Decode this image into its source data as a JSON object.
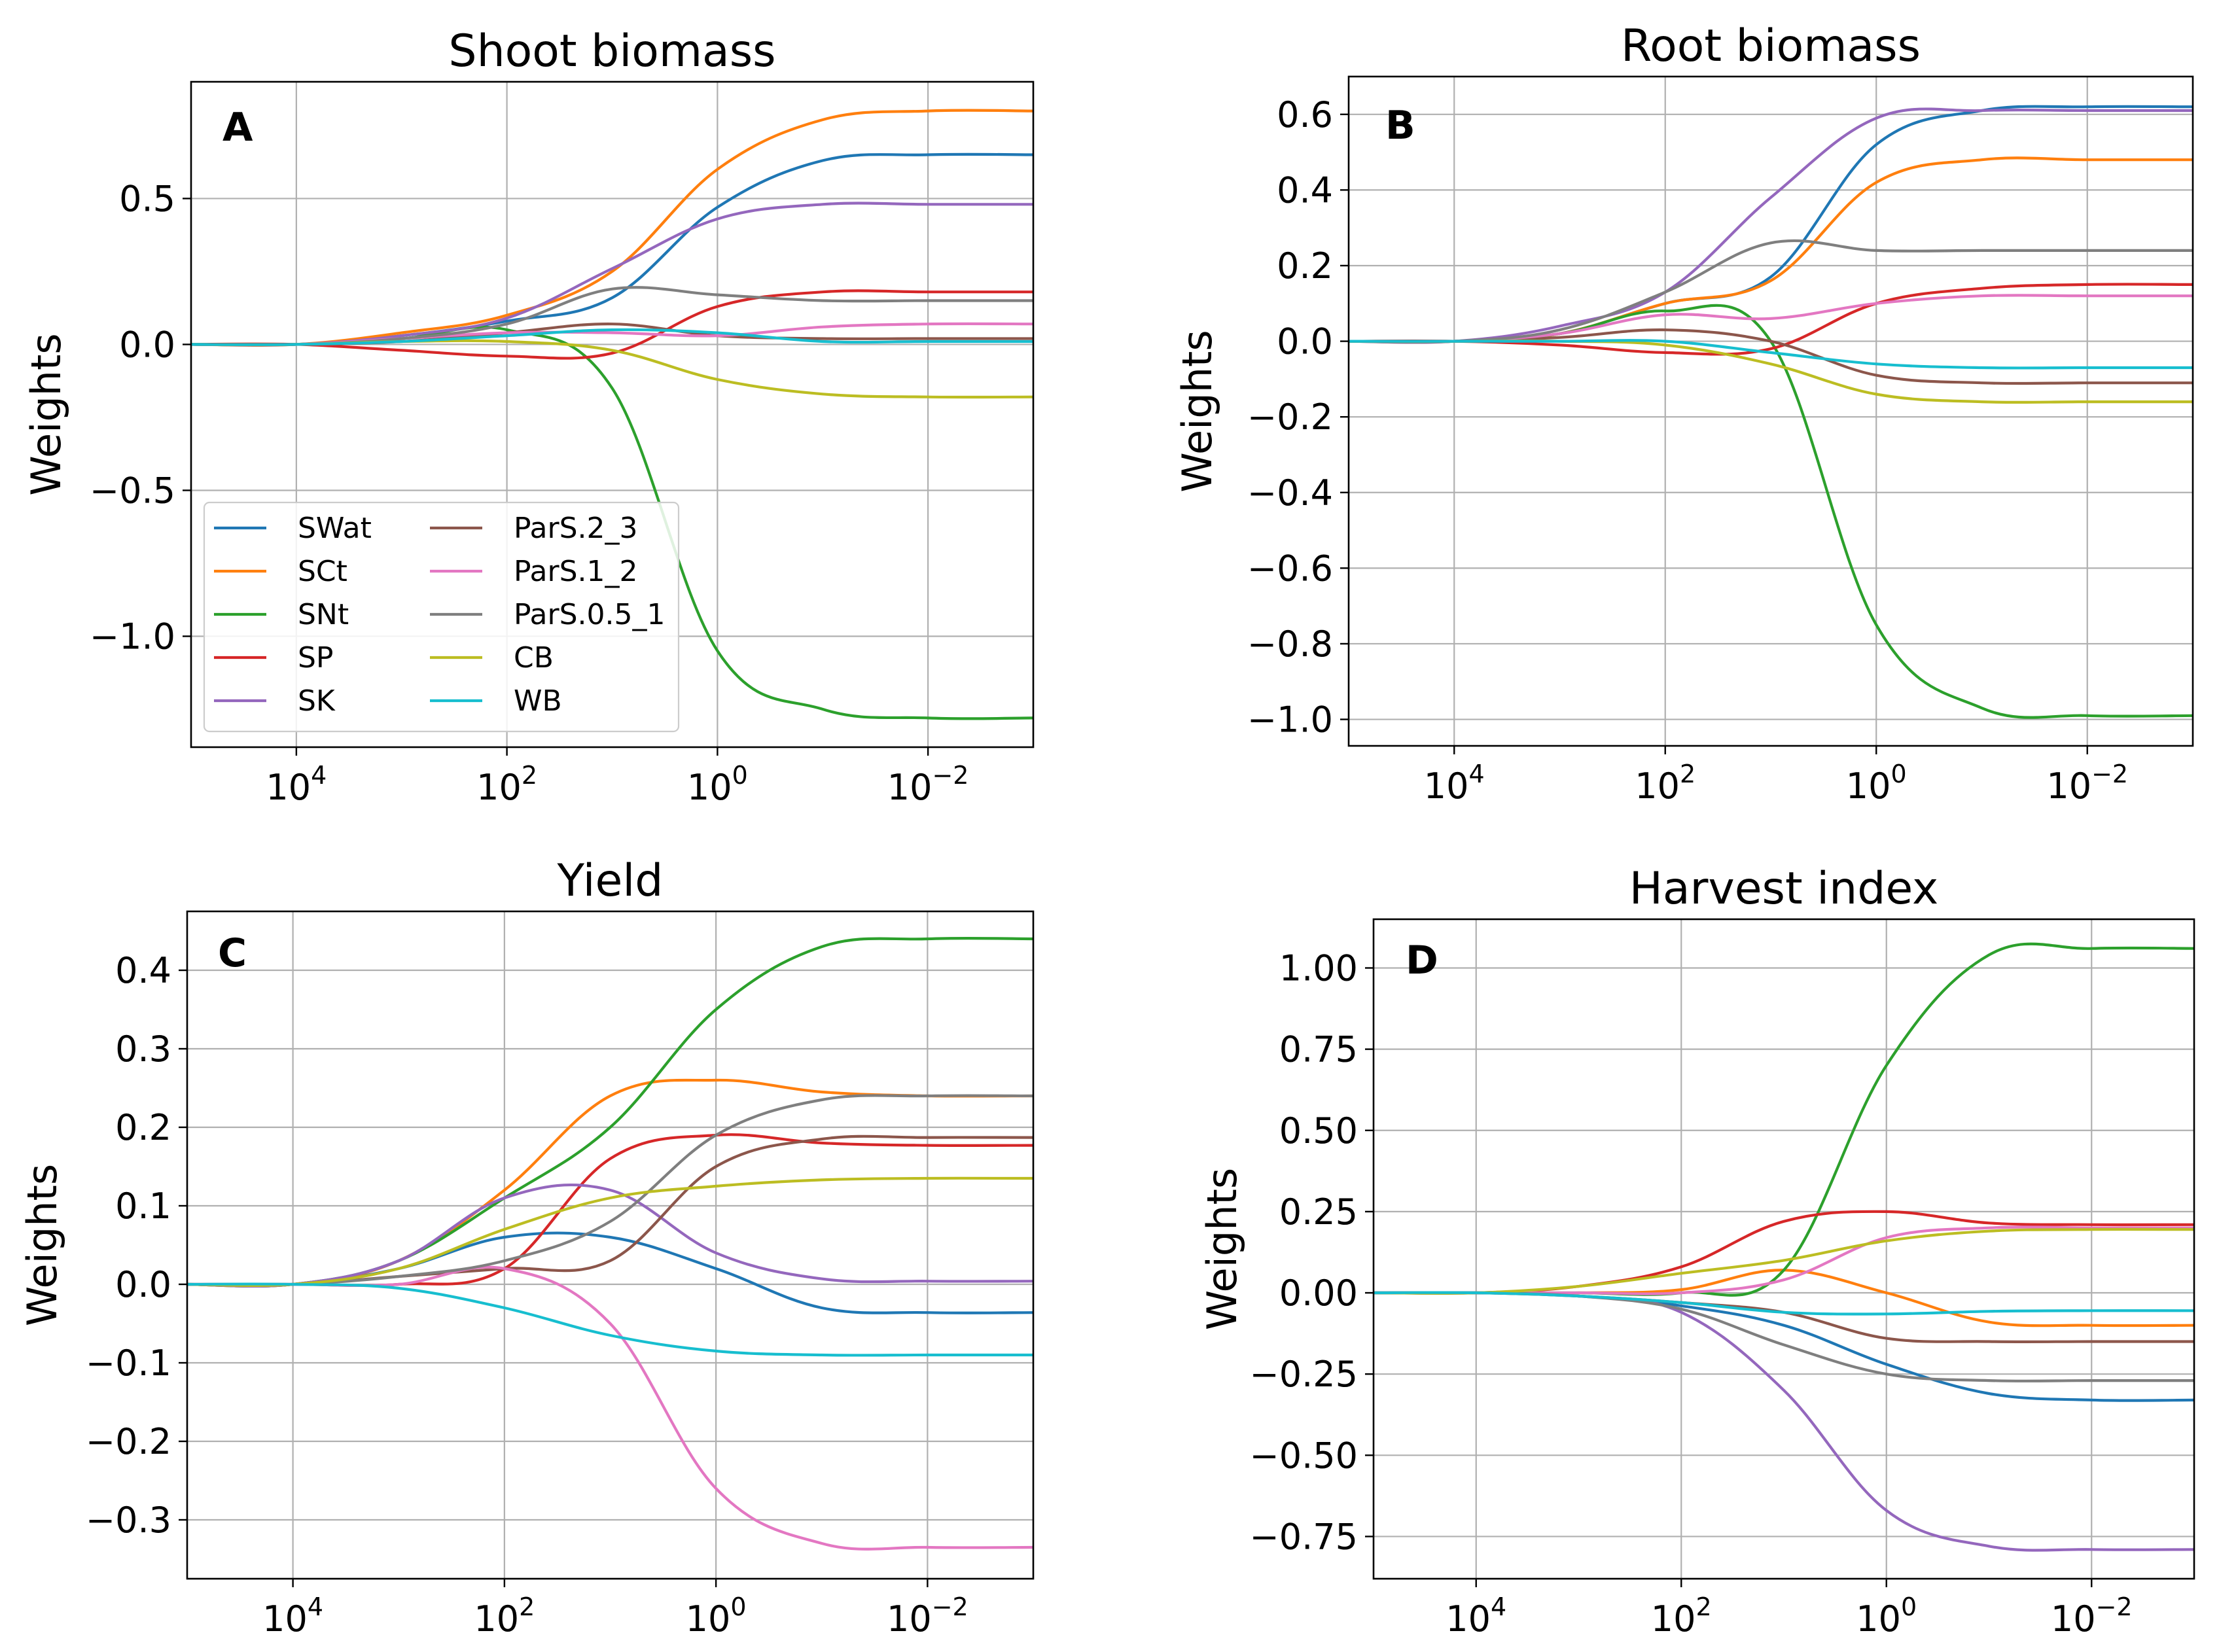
{
  "figure": {
    "legend": [
      {
        "name": "SWat",
        "color": "#1f77b4"
      },
      {
        "name": "SCt",
        "color": "#ff7f0e"
      },
      {
        "name": "SNt",
        "color": "#2ca02c"
      },
      {
        "name": "SP",
        "color": "#d62728"
      },
      {
        "name": "SK",
        "color": "#9467bd"
      },
      {
        "name": "ParS.2_3",
        "color": "#8c564b"
      },
      {
        "name": "ParS.1_2",
        "color": "#e377c2"
      },
      {
        "name": "ParS.0.5_1",
        "color": "#7f7f7f"
      },
      {
        "name": "CB",
        "color": "#bcbd22"
      },
      {
        "name": "WB",
        "color": "#17becf"
      }
    ]
  },
  "chart_data": [
    {
      "type": "line",
      "panel": "A",
      "title": "Shoot biomass",
      "xlabel": "",
      "ylabel": "Weights",
      "xscale": "log",
      "x_direction": "decreasing",
      "xlim": [
        100000,
        0.001
      ],
      "xticks": [
        10000,
        100,
        1,
        0.01
      ],
      "xticklabels": [
        "10^4",
        "10^2",
        "10^0",
        "10^-2"
      ],
      "ylim": [
        -1.38,
        0.9
      ],
      "yticks": [
        0.5,
        0.0,
        -0.5,
        -1.0
      ],
      "yticklabels": [
        "0.5",
        "0.0",
        "−0.5",
        "−1.0"
      ],
      "grid": true,
      "legend_position": "lower-left",
      "x": [
        100000,
        10000,
        1000,
        100,
        10,
        1,
        0.1,
        0.01,
        0.001
      ],
      "series": [
        {
          "name": "SWat",
          "values": [
            0,
            0.0,
            0.03,
            0.08,
            0.16,
            0.47,
            0.63,
            0.65,
            0.65
          ]
        },
        {
          "name": "SCt",
          "values": [
            0,
            0.0,
            0.04,
            0.1,
            0.25,
            0.6,
            0.77,
            0.8,
            0.8
          ]
        },
        {
          "name": "SNt",
          "values": [
            0,
            0.0,
            0.02,
            0.05,
            -0.15,
            -1.05,
            -1.25,
            -1.28,
            -1.28
          ]
        },
        {
          "name": "SP",
          "values": [
            0,
            0.0,
            -0.02,
            -0.04,
            -0.03,
            0.13,
            0.18,
            0.18,
            0.18
          ]
        },
        {
          "name": "SK",
          "values": [
            0,
            0.0,
            0.03,
            0.09,
            0.26,
            0.43,
            0.48,
            0.48,
            0.48
          ]
        },
        {
          "name": "ParS.2_3",
          "values": [
            0,
            0.0,
            0.01,
            0.04,
            0.07,
            0.03,
            0.02,
            0.02,
            0.02
          ]
        },
        {
          "name": "ParS.1_2",
          "values": [
            0,
            0.0,
            0.02,
            0.04,
            0.04,
            0.03,
            0.06,
            0.07,
            0.07
          ]
        },
        {
          "name": "ParS.0.5_1",
          "values": [
            0,
            0.0,
            0.02,
            0.07,
            0.19,
            0.17,
            0.15,
            0.15,
            0.15
          ]
        },
        {
          "name": "CB",
          "values": [
            0,
            0.0,
            0.01,
            0.01,
            -0.02,
            -0.12,
            -0.17,
            -0.18,
            -0.18
          ]
        },
        {
          "name": "WB",
          "values": [
            0,
            0.0,
            0.01,
            0.03,
            0.05,
            0.04,
            0.01,
            0.01,
            0.01
          ]
        }
      ]
    },
    {
      "type": "line",
      "panel": "B",
      "title": "Root biomass",
      "xlabel": "",
      "ylabel": "Weights",
      "xscale": "log",
      "x_direction": "decreasing",
      "xlim": [
        100000,
        0.001
      ],
      "xticks": [
        10000,
        100,
        1,
        0.01
      ],
      "xticklabels": [
        "10^4",
        "10^2",
        "10^0",
        "10^-2"
      ],
      "ylim": [
        -1.07,
        0.7
      ],
      "yticks": [
        0.6,
        0.4,
        0.2,
        0.0,
        -0.2,
        -0.4,
        -0.6,
        -0.8,
        -1.0
      ],
      "yticklabels": [
        "0.6",
        "0.4",
        "0.2",
        "0.0",
        "−0.2",
        "−0.4",
        "−0.6",
        "−0.8",
        "−1.0"
      ],
      "grid": true,
      "x": [
        100000,
        10000,
        1000,
        100,
        10,
        1,
        0.1,
        0.01,
        0.001
      ],
      "series": [
        {
          "name": "SWat",
          "values": [
            0,
            0.0,
            0.02,
            0.1,
            0.17,
            0.52,
            0.61,
            0.62,
            0.62
          ]
        },
        {
          "name": "SCt",
          "values": [
            0,
            0.0,
            0.02,
            0.1,
            0.16,
            0.42,
            0.48,
            0.48,
            0.48
          ]
        },
        {
          "name": "SNt",
          "values": [
            0,
            0.0,
            0.02,
            0.08,
            0.0,
            -0.75,
            -0.97,
            -0.99,
            -0.99
          ]
        },
        {
          "name": "SP",
          "values": [
            0,
            0.0,
            -0.01,
            -0.03,
            -0.02,
            0.1,
            0.14,
            0.15,
            0.15
          ]
        },
        {
          "name": "SK",
          "values": [
            0,
            0.0,
            0.04,
            0.13,
            0.38,
            0.59,
            0.61,
            0.61,
            0.61
          ]
        },
        {
          "name": "ParS.2_3",
          "values": [
            0,
            0.0,
            0.01,
            0.03,
            0.0,
            -0.09,
            -0.11,
            -0.11,
            -0.11
          ]
        },
        {
          "name": "ParS.1_2",
          "values": [
            0,
            0.0,
            0.02,
            0.07,
            0.06,
            0.1,
            0.12,
            0.12,
            0.12
          ]
        },
        {
          "name": "ParS.0.5_1",
          "values": [
            0,
            0.0,
            0.03,
            0.13,
            0.26,
            0.24,
            0.24,
            0.24,
            0.24
          ]
        },
        {
          "name": "CB",
          "values": [
            0,
            0.0,
            0.0,
            -0.01,
            -0.06,
            -0.14,
            -0.16,
            -0.16,
            -0.16
          ]
        },
        {
          "name": "WB",
          "values": [
            0,
            0.0,
            0.0,
            0.0,
            -0.03,
            -0.06,
            -0.07,
            -0.07,
            -0.07
          ]
        }
      ]
    },
    {
      "type": "line",
      "panel": "C",
      "title": "Yield",
      "xlabel": "",
      "ylabel": "Weights",
      "xscale": "log",
      "x_direction": "decreasing",
      "xlim": [
        100000,
        0.001
      ],
      "xticks": [
        10000,
        100,
        1,
        0.01
      ],
      "xticklabels": [
        "10^4",
        "10^2",
        "10^0",
        "10^-2"
      ],
      "ylim": [
        -0.375,
        0.475
      ],
      "yticks": [
        0.4,
        0.3,
        0.2,
        0.1,
        0.0,
        -0.1,
        -0.2,
        -0.3
      ],
      "yticklabels": [
        "0.4",
        "0.3",
        "0.2",
        "0.1",
        "0.0",
        "−0.1",
        "−0.2",
        "−0.3"
      ],
      "grid": true,
      "x": [
        100000,
        10000,
        1000,
        100,
        10,
        1,
        0.1,
        0.01,
        0.001
      ],
      "series": [
        {
          "name": "SWat",
          "values": [
            0,
            0.0,
            0.02,
            0.06,
            0.06,
            0.02,
            -0.03,
            -0.036,
            -0.036
          ]
        },
        {
          "name": "SCt",
          "values": [
            0,
            0.0,
            0.03,
            0.12,
            0.24,
            0.26,
            0.245,
            0.24,
            0.24
          ]
        },
        {
          "name": "SNt",
          "values": [
            0,
            0.0,
            0.03,
            0.11,
            0.2,
            0.35,
            0.43,
            0.44,
            0.44
          ]
        },
        {
          "name": "SP",
          "values": [
            0,
            0.0,
            0.0,
            0.02,
            0.16,
            0.19,
            0.18,
            0.177,
            0.177
          ]
        },
        {
          "name": "SK",
          "values": [
            0,
            0.0,
            0.03,
            0.11,
            0.12,
            0.04,
            0.007,
            0.004,
            0.004
          ]
        },
        {
          "name": "ParS.2_3",
          "values": [
            0,
            0.0,
            0.01,
            0.02,
            0.03,
            0.15,
            0.185,
            0.187,
            0.187
          ]
        },
        {
          "name": "ParS.1_2",
          "values": [
            0,
            0.0,
            0.0,
            0.02,
            -0.05,
            -0.26,
            -0.33,
            -0.335,
            -0.335
          ]
        },
        {
          "name": "ParS.0.5_1",
          "values": [
            0,
            0.0,
            0.01,
            0.03,
            0.08,
            0.19,
            0.235,
            0.24,
            0.24
          ]
        },
        {
          "name": "CB",
          "values": [
            0,
            0.0,
            0.02,
            0.07,
            0.11,
            0.125,
            0.133,
            0.135,
            0.135
          ]
        },
        {
          "name": "WB",
          "values": [
            0,
            0.0,
            -0.005,
            -0.03,
            -0.065,
            -0.085,
            -0.09,
            -0.09,
            -0.09
          ]
        }
      ]
    },
    {
      "type": "line",
      "panel": "D",
      "title": "Harvest index",
      "xlabel": "",
      "ylabel": "Weights",
      "xscale": "log",
      "x_direction": "decreasing",
      "xlim": [
        100000,
        0.001
      ],
      "xticks": [
        10000,
        100,
        1,
        0.01
      ],
      "xticklabels": [
        "10^4",
        "10^2",
        "10^0",
        "10^-2"
      ],
      "ylim": [
        -0.88,
        1.15
      ],
      "yticks": [
        1.0,
        0.75,
        0.5,
        0.25,
        0.0,
        -0.25,
        -0.5,
        -0.75
      ],
      "yticklabels": [
        "1.00",
        "0.75",
        "0.50",
        "0.25",
        "0.00",
        "−0.25",
        "−0.50",
        "−0.75"
      ],
      "grid": true,
      "x": [
        100000,
        10000,
        1000,
        100,
        10,
        1,
        0.1,
        0.01,
        0.001
      ],
      "series": [
        {
          "name": "SWat",
          "values": [
            0,
            0.0,
            -0.01,
            -0.04,
            -0.1,
            -0.22,
            -0.31,
            -0.33,
            -0.33
          ]
        },
        {
          "name": "SCt",
          "values": [
            0,
            0.0,
            0.0,
            0.01,
            0.07,
            0.0,
            -0.09,
            -0.1,
            -0.1
          ]
        },
        {
          "name": "SNt",
          "values": [
            0,
            0.0,
            0.0,
            0.0,
            0.07,
            0.7,
            1.04,
            1.06,
            1.06
          ]
        },
        {
          "name": "SP",
          "values": [
            0,
            0.0,
            0.02,
            0.08,
            0.22,
            0.25,
            0.215,
            0.21,
            0.21
          ]
        },
        {
          "name": "SK",
          "values": [
            0,
            0.0,
            -0.01,
            -0.06,
            -0.3,
            -0.67,
            -0.78,
            -0.79,
            -0.79
          ]
        },
        {
          "name": "ParS.2_3",
          "values": [
            0,
            0.0,
            -0.01,
            -0.03,
            -0.06,
            -0.14,
            -0.15,
            -0.15,
            -0.15
          ]
        },
        {
          "name": "ParS.1_2",
          "values": [
            0,
            0.0,
            0.0,
            0.0,
            0.04,
            0.17,
            0.2,
            0.2,
            0.2
          ]
        },
        {
          "name": "ParS.0.5_1",
          "values": [
            0,
            0.0,
            -0.01,
            -0.05,
            -0.16,
            -0.25,
            -0.27,
            -0.27,
            -0.27
          ]
        },
        {
          "name": "CB",
          "values": [
            0,
            0.0,
            0.02,
            0.06,
            0.1,
            0.16,
            0.19,
            0.195,
            0.195
          ]
        },
        {
          "name": "WB",
          "values": [
            0,
            0.0,
            -0.01,
            -0.03,
            -0.06,
            -0.065,
            -0.057,
            -0.055,
            -0.055
          ]
        }
      ]
    }
  ]
}
